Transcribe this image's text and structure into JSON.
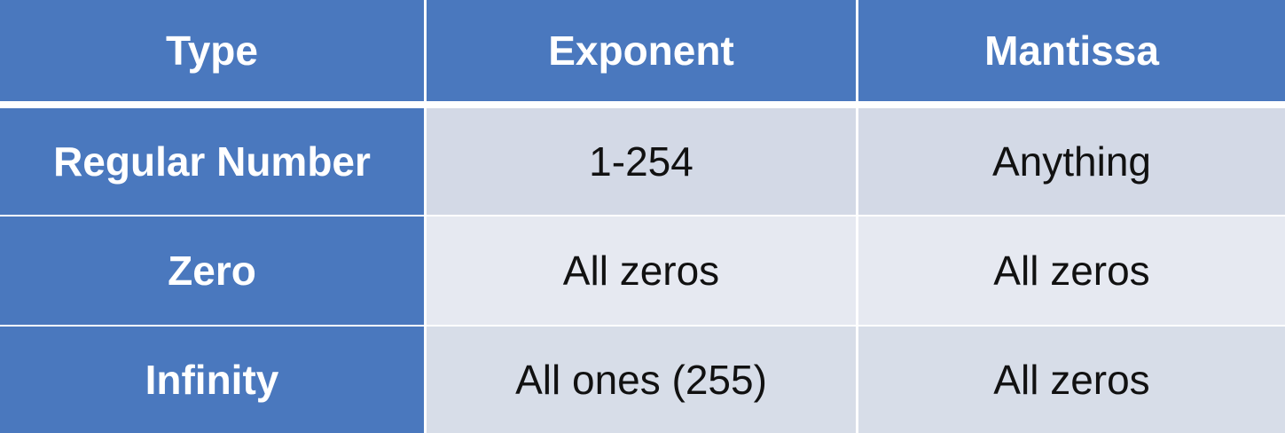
{
  "table": {
    "headers": [
      "Type",
      "Exponent",
      "Mantissa"
    ],
    "rows": [
      [
        "Regular Number",
        "1-254",
        "Anything"
      ],
      [
        "Zero",
        "All zeros",
        "All zeros"
      ],
      [
        "Infinity",
        "All ones (255)",
        "All zeros"
      ]
    ]
  },
  "colors": {
    "header_blue": "#4a78be",
    "row_band_1": "#d3d9e6",
    "row_band_2": "#e6e9f1",
    "row_band_3": "#d7dde8",
    "divider": "#ffffff"
  }
}
